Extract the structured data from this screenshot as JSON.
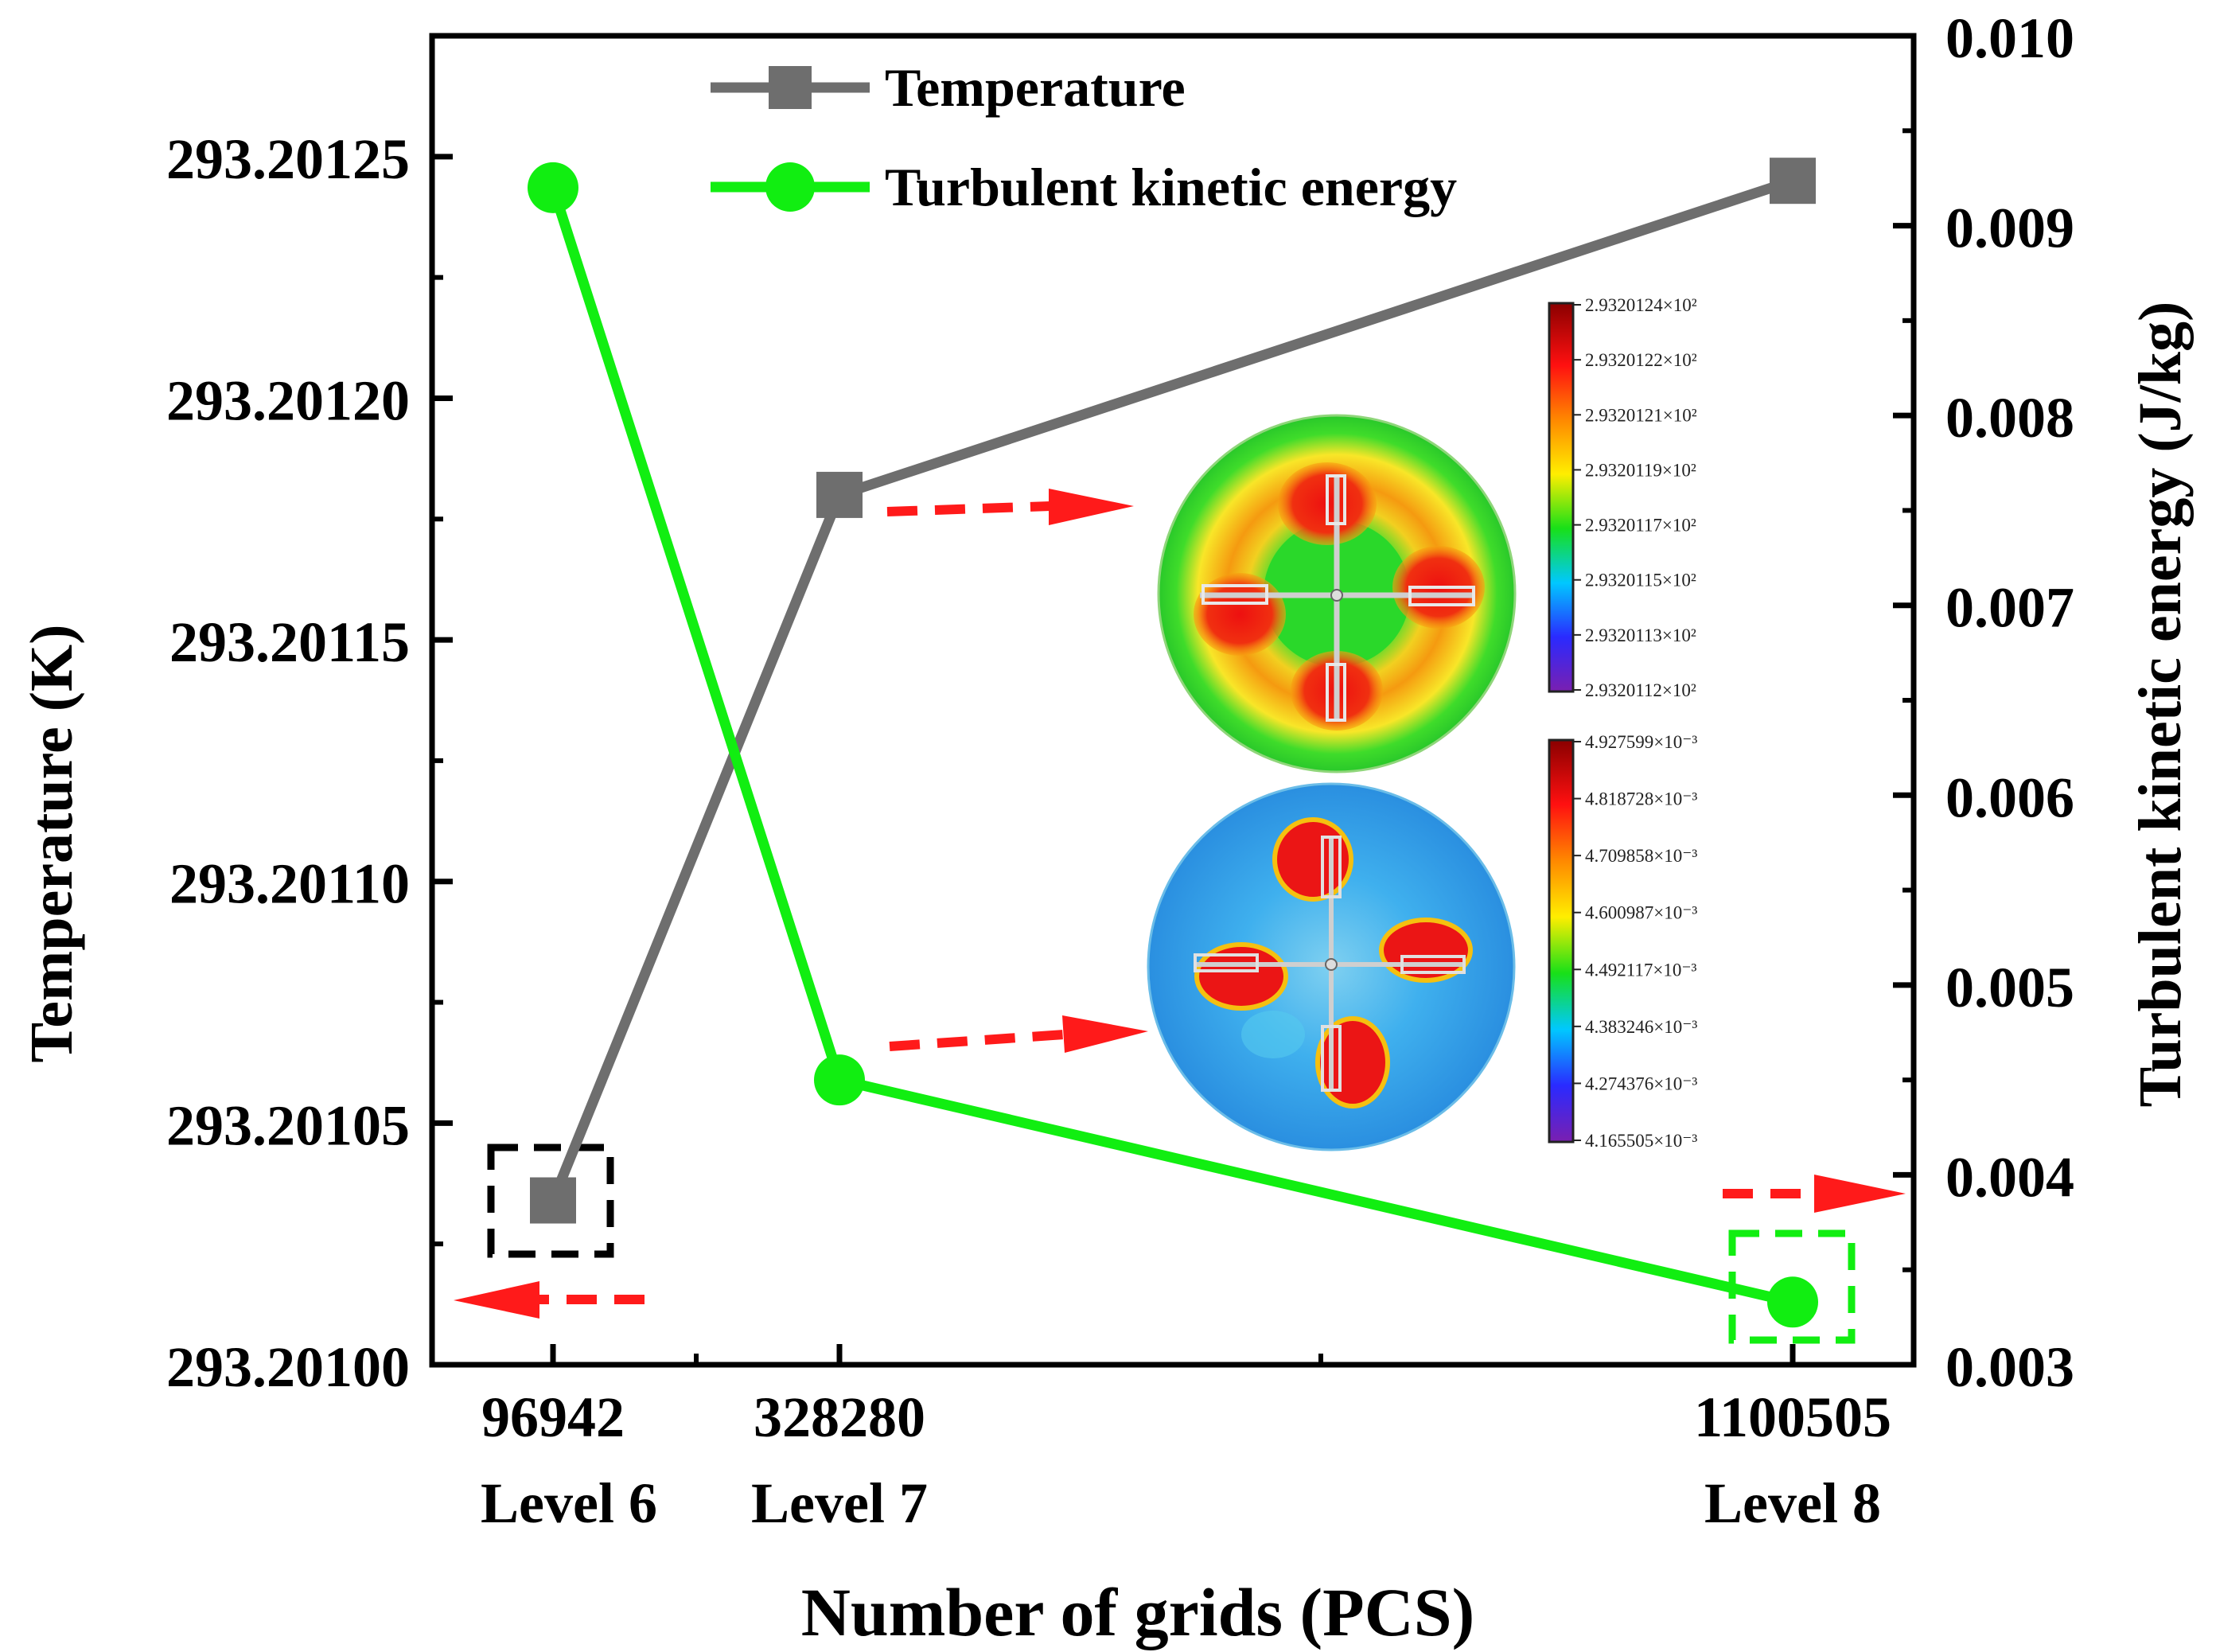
{
  "chart_data": {
    "type": "line",
    "title": "",
    "xlabel": "Number of grids (PCS)",
    "ylabel_left": "Temperature (K)",
    "ylabel_right": "Turbulent kinetic energy (J/kg)",
    "x_tick_labels": [
      {
        "value": "96942",
        "level": "Level 6"
      },
      {
        "value": "328280",
        "level": "Level 7"
      },
      {
        "value": "1100505",
        "level": "Level 8"
      }
    ],
    "x": [
      96942,
      328280,
      1100505
    ],
    "ylim_left": [
      293.201,
      293.201275
    ],
    "ylim_right": [
      0.003,
      0.01
    ],
    "yticks_left": [
      "293.20100",
      "293.20105",
      "293.20110",
      "293.20115",
      "293.20120",
      "293.20125"
    ],
    "yticks_right": [
      "0.003",
      "0.004",
      "0.005",
      "0.006",
      "0.007",
      "0.008",
      "0.009",
      "0.010"
    ],
    "series": [
      {
        "name": "Temperature",
        "axis": "left",
        "color": "#6e6e6e",
        "marker": "square",
        "values": [
          293.201034,
          293.20118,
          293.201245
        ]
      },
      {
        "name": "Turbulent kinetic energy",
        "axis": "right",
        "color": "#11ee11",
        "marker": "circle",
        "values": [
          0.0092,
          0.0045,
          0.00333
        ]
      }
    ],
    "legend": {
      "position": "top-center",
      "entries": [
        "Temperature",
        "Turbulent kinetic energy"
      ]
    },
    "insets": [
      {
        "name": "temperature-contour",
        "attached_to": "Temperature at Level 7",
        "colorbar_labels": [
          "2.9320124×10²",
          "2.9320122×10²",
          "2.9320121×10²",
          "2.9320119×10²",
          "2.9320117×10²",
          "2.9320115×10²",
          "2.9320113×10²",
          "2.9320112×10²"
        ]
      },
      {
        "name": "tke-contour",
        "attached_to": "Turbulent kinetic energy at Level 7",
        "colorbar_labels": [
          "4.927599×10⁻³",
          "4.818728×10⁻³",
          "4.709858×10⁻³",
          "4.600987×10⁻³",
          "4.492117×10⁻³",
          "4.383246×10⁻³",
          "4.274376×10⁻³",
          "4.165505×10⁻³"
        ]
      }
    ],
    "colors": {
      "arrow": "#ff1a1a",
      "highlight_black": "#000000",
      "highlight_green": "#11ee11"
    }
  }
}
